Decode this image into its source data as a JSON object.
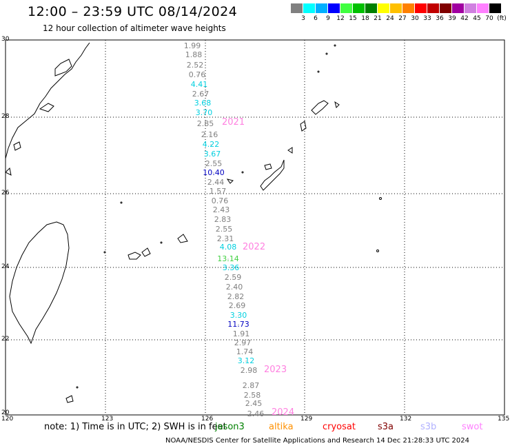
{
  "header": {
    "title": "12:00 – 23:59 UTC 08/14/2024",
    "subtitle": "12 hour collection of altimeter wave heights"
  },
  "legend": {
    "colors": [
      "#808080",
      "#00ffff",
      "#00b0ff",
      "#0000ff",
      "#40ff40",
      "#00c000",
      "#008000",
      "#ffff00",
      "#ffc000",
      "#ff8000",
      "#ff0000",
      "#c00000",
      "#800000",
      "#a000a0",
      "#d080e0",
      "#ff80ff",
      "#000000"
    ],
    "labels": [
      "3",
      "6",
      "9",
      "12",
      "15",
      "18",
      "21",
      "24",
      "27",
      "30",
      "33",
      "36",
      "39",
      "42",
      "45",
      "70",
      "(ft)"
    ]
  },
  "axes": {
    "lon_ticks": [
      "120",
      "123",
      "126",
      "129",
      "132",
      "135"
    ],
    "lat_ticks": [
      "30",
      "28",
      "26",
      "24",
      "22",
      "20"
    ]
  },
  "track_values": [
    {
      "text": "1.99",
      "color": "#808080"
    },
    {
      "text": "1.88",
      "color": "#808080"
    },
    {
      "text": "2.52",
      "color": "#808080"
    },
    {
      "text": "0.76",
      "color": "#808080"
    },
    {
      "text": "4.41",
      "color": "#00d0e0"
    },
    {
      "text": "2.67",
      "color": "#808080"
    },
    {
      "text": "3.68",
      "color": "#00d0e0"
    },
    {
      "text": "3.70",
      "color": "#00d0e0"
    },
    {
      "text": "2.85",
      "color": "#808080"
    },
    {
      "text": "2.16",
      "color": "#808080"
    },
    {
      "text": "4.22",
      "color": "#00d0e0"
    },
    {
      "text": "3.67",
      "color": "#00d0e0"
    },
    {
      "text": "2.55",
      "color": "#808080"
    },
    {
      "text": "10.40",
      "color": "#0000c0"
    },
    {
      "text": "2.44",
      "color": "#808080"
    },
    {
      "text": "1.57",
      "color": "#808080"
    },
    {
      "text": "0.76",
      "color": "#808080"
    },
    {
      "text": "2.43",
      "color": "#808080"
    },
    {
      "text": "2.83",
      "color": "#808080"
    },
    {
      "text": "2.55",
      "color": "#808080"
    },
    {
      "text": "2.31",
      "color": "#808080"
    },
    {
      "text": "4.08",
      "color": "#00d0e0"
    },
    {
      "text": "13.14",
      "color": "#40d040"
    },
    {
      "text": "3.36",
      "color": "#00d0e0"
    },
    {
      "text": "2.59",
      "color": "#808080"
    },
    {
      "text": "2.40",
      "color": "#808080"
    },
    {
      "text": "2.82",
      "color": "#808080"
    },
    {
      "text": "2.69",
      "color": "#808080"
    },
    {
      "text": "3.30",
      "color": "#00d0e0"
    },
    {
      "text": "11.73",
      "color": "#0000c0"
    },
    {
      "text": "1.91",
      "color": "#808080"
    },
    {
      "text": "2.97",
      "color": "#808080"
    },
    {
      "text": "1.74",
      "color": "#808080"
    },
    {
      "text": "3.12",
      "color": "#00d0e0"
    },
    {
      "text": "2.98",
      "color": "#808080"
    },
    {
      "text": "2.87",
      "color": "#808080"
    },
    {
      "text": "2.58",
      "color": "#808080"
    },
    {
      "text": "2.45",
      "color": "#808080"
    },
    {
      "text": "2.46",
      "color": "#808080"
    }
  ],
  "year_labels": [
    {
      "text": "2021",
      "color": "#ff80e0"
    },
    {
      "text": "2022",
      "color": "#ff80e0"
    },
    {
      "text": "2023",
      "color": "#ff80e0"
    },
    {
      "text": "2024",
      "color": "#ff80e0"
    }
  ],
  "note": "note:  1) Time is in UTC;  2) SWH is in feet",
  "satellites": [
    {
      "name": "jason3",
      "color": "#008000"
    },
    {
      "name": "altika",
      "color": "#ff9000"
    },
    {
      "name": "cryosat",
      "color": "#ff0000"
    },
    {
      "name": "s3a",
      "color": "#800000"
    },
    {
      "name": "s3b",
      "color": "#b0b0ff"
    },
    {
      "name": "swot",
      "color": "#ff80ff"
    }
  ],
  "footer": "NOAA/NESDIS Center for Satellite Applications and Research    14 Dec 21:28:33 UTC 2024"
}
